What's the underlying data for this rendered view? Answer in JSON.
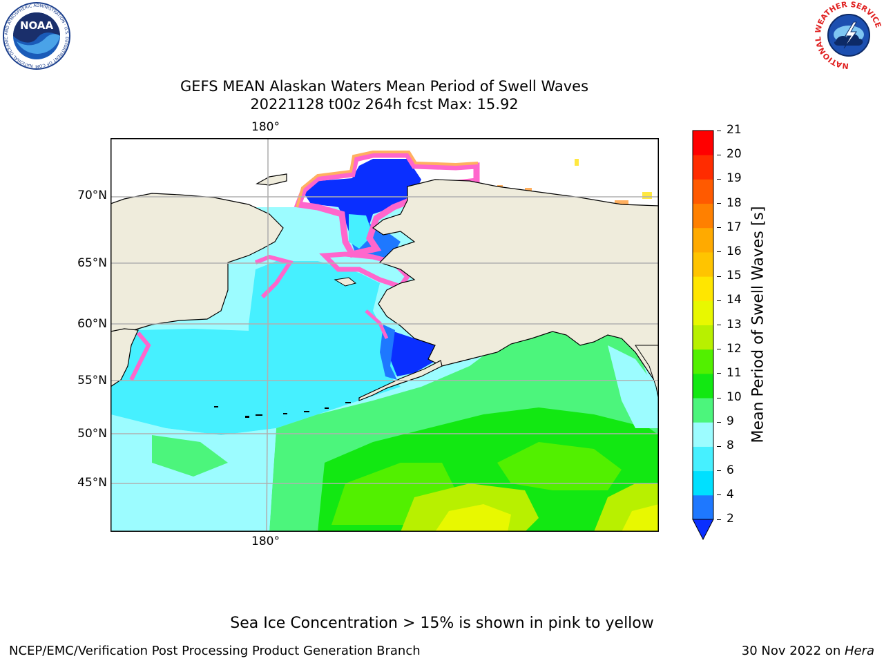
{
  "title": {
    "line1": "GEFS MEAN Alaskan Waters Mean Period of Swell Waves",
    "line2": "20221128 t00z 264h fcst   Max: 15.92"
  },
  "map": {
    "lat_labels": [
      "70°N",
      "65°N",
      "60°N",
      "55°N",
      "50°N",
      "45°N"
    ],
    "lon_label_top": "180°",
    "lon_label_bottom": "180°",
    "lat_range": [
      40,
      74
    ],
    "lon_range": [
      165,
      245
    ]
  },
  "colorbar": {
    "label": "Mean Period of Swell Waves [s]",
    "ticks": [
      "2",
      "4",
      "6",
      "8",
      "9",
      "10",
      "11",
      "12",
      "13",
      "14",
      "15",
      "16",
      "17",
      "18",
      "19",
      "20",
      "21"
    ],
    "extend": "min",
    "colors": [
      "#0a2fff",
      "#1e78ff",
      "#00e0ff",
      "#46f0ff",
      "#9cfcff",
      "#4cf57c",
      "#12e812",
      "#52f000",
      "#b8f000",
      "#e8f800",
      "#ffe600",
      "#ffc400",
      "#ffaa00",
      "#ff8000",
      "#ff5a00",
      "#ff2c00",
      "#ff0000"
    ]
  },
  "caption": "Sea Ice Concentration > 15% is shown in pink to yellow",
  "footer": {
    "left": "NCEP/EMC/Verification Post Processing Product Generation Branch",
    "right_prefix": "30 Nov 2022 on ",
    "right_host": "Hera"
  },
  "logos": {
    "noaa": {
      "text": "NOAA",
      "ring_text": "NATIONAL OCEANIC AND ATMOSPHERIC ADMINISTRATION · U.S. DEPARTMENT OF COMMERCE"
    },
    "nws": {
      "ring_text": "NATIONAL WEATHER SERVICE"
    }
  },
  "colors": {
    "land": "#efecdc",
    "grid": "#b0b0b0",
    "ice_pink": "#ff66cc",
    "ice_orange": "#ffb060",
    "ice_yellow": "#ffe840"
  }
}
